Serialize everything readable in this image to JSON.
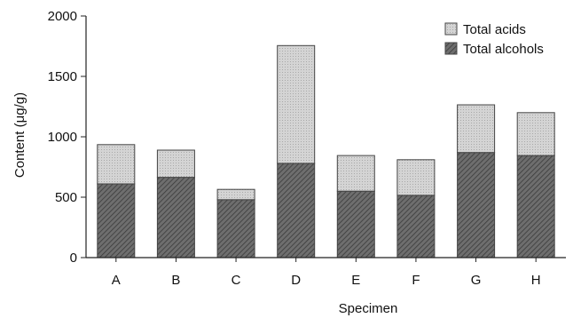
{
  "chart_data": {
    "type": "bar",
    "stacked": true,
    "categories": [
      "A",
      "B",
      "C",
      "D",
      "E",
      "F",
      "G",
      "H"
    ],
    "series": [
      {
        "name": "Total alcohols",
        "values": [
          610,
          665,
          480,
          780,
          550,
          515,
          870,
          845
        ],
        "fill": "#6b6b6b"
      },
      {
        "name": "Total acids",
        "values": [
          325,
          225,
          85,
          975,
          295,
          295,
          395,
          355
        ],
        "fill": "#cfcfcf"
      }
    ],
    "legend_order": [
      "Total acids",
      "Total alcohols"
    ],
    "xlabel": "Specimen",
    "ylabel": "Content (μg/g)",
    "ylim": [
      0,
      2000
    ],
    "yticks": [
      0,
      500,
      1000,
      1500,
      2000
    ],
    "legend_position": "top-right",
    "grid": false
  }
}
